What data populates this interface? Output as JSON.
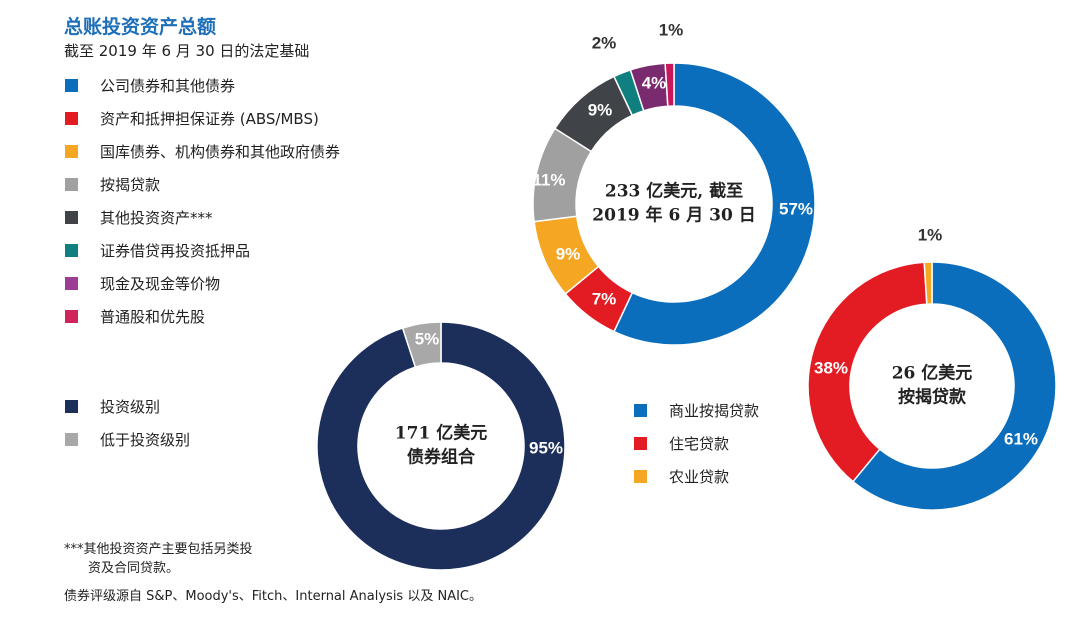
{
  "header": {
    "title": "总账投资资产总额",
    "subtitle": "截至 2019 年 6 月 30 日的法定基础"
  },
  "colors": {
    "blue": "#0a6ebd",
    "red": "#e31b23",
    "orange": "#f5a623",
    "gray": "#a0a0a0",
    "darkgray": "#404347",
    "teal": "#0f7f7f",
    "purple": "#7a2a6e",
    "crimson": "#c8175b",
    "navy": "#1c2f5b",
    "lightgray": "#a8a8a8"
  },
  "legend_main": [
    {
      "label": "公司债券和其他债券",
      "color": "#0a6ebd"
    },
    {
      "label": "资产和抵押担保证券 (ABS/MBS)",
      "color": "#e31b23"
    },
    {
      "label": "国库债券、机构债券和其他政府债券",
      "color": "#f5a623"
    },
    {
      "label": "按揭贷款",
      "color": "#a0a0a0"
    },
    {
      "label": "其他投资资产***",
      "color": "#404347"
    },
    {
      "label": "证券借贷再投资抵押品",
      "color": "#0f7f7f"
    },
    {
      "label": "现金及现金等价物",
      "color": "#9b3f94"
    },
    {
      "label": "普通股和优先股",
      "color": "#d0245c"
    }
  ],
  "legend_bond": [
    {
      "label": "投资级别",
      "color": "#1c2f5b"
    },
    {
      "label": "低于投资级别",
      "color": "#a8a8a8"
    }
  ],
  "legend_mort": [
    {
      "label": "商业按揭贷款",
      "color": "#0a6ebd"
    },
    {
      "label": "住宅贷款",
      "color": "#e31b23"
    },
    {
      "label": "农业贷款",
      "color": "#f5a623"
    }
  ],
  "footnote": {
    "line1": "***其他投资资产主要包括另类投",
    "line2": "资及合同贷款。"
  },
  "source": "债券评级源自 S&P、Moody's、Fitch、Internal Analysis 以及 NAIC。",
  "chart_data": [
    {
      "type": "pie",
      "donut": true,
      "title": "233 亿美元, 截至 2019 年 6 月 30 日",
      "center_lines": [
        "233 亿美元, 截至",
        "2019 年 6 月 30 日"
      ],
      "slices": [
        {
          "name": "公司债券和其他债券",
          "value": 57,
          "label": "57%",
          "color": "#0a6ebd"
        },
        {
          "name": "资产和抵押担保证券 (ABS/MBS)",
          "value": 7,
          "label": "7%",
          "color": "#e31b23"
        },
        {
          "name": "国库债券、机构债券和其他政府债券",
          "value": 9,
          "label": "9%",
          "color": "#f5a623"
        },
        {
          "name": "按揭贷款",
          "value": 11,
          "label": "11%",
          "color": "#a0a0a0"
        },
        {
          "name": "其他投资资产***",
          "value": 9,
          "label": "9%",
          "color": "#404347"
        },
        {
          "name": "证券借贷再投资抵押品",
          "value": 2,
          "label": "2%",
          "color": "#0f7f7f"
        },
        {
          "name": "现金及现金等价物",
          "value": 4,
          "label": "4%",
          "color": "#7a2a6e"
        },
        {
          "name": "普通股和优先股",
          "value": 1,
          "label": "1%",
          "color": "#c8175b"
        }
      ]
    },
    {
      "type": "pie",
      "donut": true,
      "title": "171 亿美元 债券组合",
      "center_lines": [
        "171 亿美元",
        "债券组合"
      ],
      "slices": [
        {
          "name": "投资级别",
          "value": 95,
          "label": "95%",
          "color": "#1c2f5b"
        },
        {
          "name": "低于投资级别",
          "value": 5,
          "label": "5%",
          "color": "#a8a8a8"
        }
      ]
    },
    {
      "type": "pie",
      "donut": true,
      "title": "26 亿美元 按揭贷款",
      "center_lines": [
        "26 亿美元",
        "按揭贷款"
      ],
      "slices": [
        {
          "name": "商业按揭贷款",
          "value": 61,
          "label": "61%",
          "color": "#0a6ebd"
        },
        {
          "name": "住宅贷款",
          "value": 38,
          "label": "38%",
          "color": "#e31b23"
        },
        {
          "name": "农业贷款",
          "value": 1,
          "label": "1%",
          "color": "#f5a623"
        }
      ]
    }
  ]
}
